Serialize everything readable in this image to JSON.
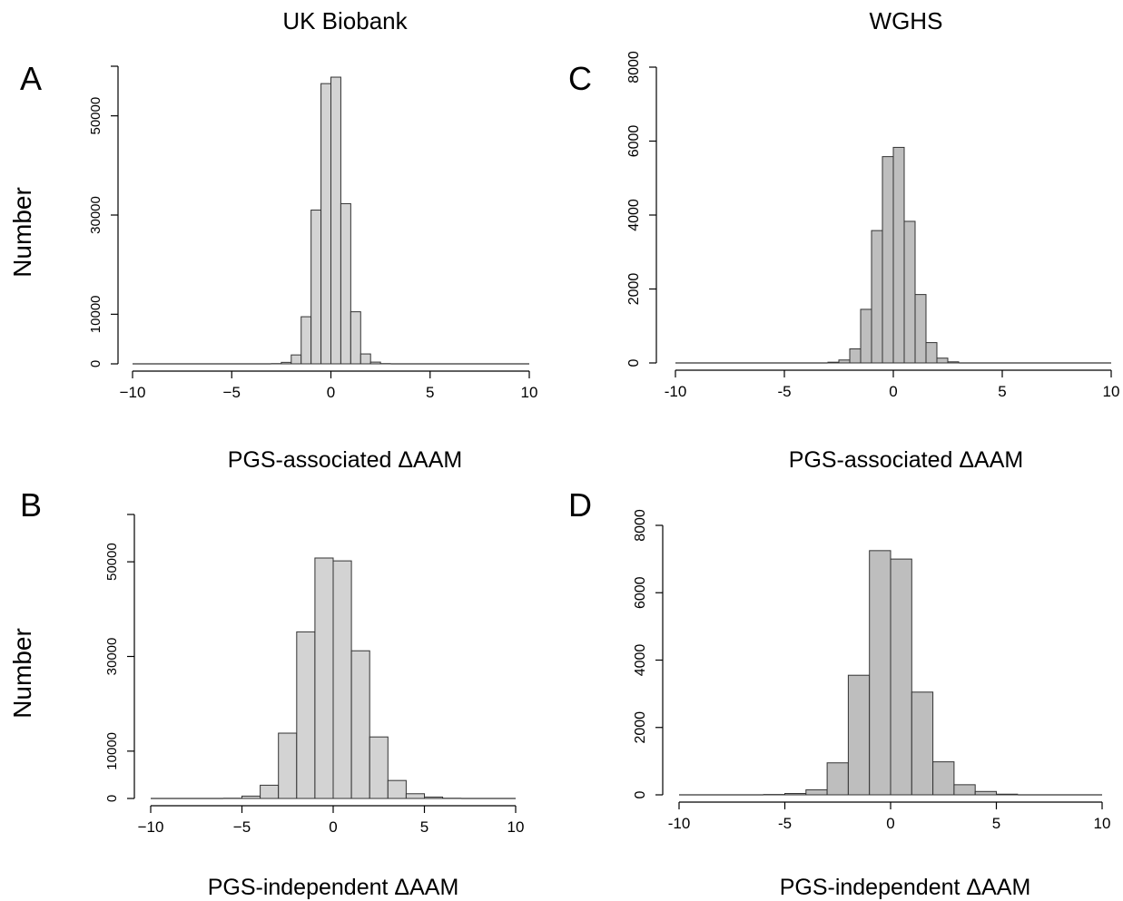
{
  "columns": {
    "left_title": "UK Biobank",
    "right_title": "WGHS"
  },
  "row_labels": {
    "top_ylabel": "Number",
    "bottom_ylabel": "Number"
  },
  "chart_data": [
    {
      "panel": "A",
      "type": "bar",
      "title": "",
      "xlabel": "PGS-associated ΔAAM",
      "ylabel": "Number",
      "bar_color": "#d3d3d3",
      "xlim": [
        -10,
        10
      ],
      "ylim": [
        0,
        60000
      ],
      "xticks": [
        "−10",
        "−5",
        "0",
        "5",
        "10"
      ],
      "xtick_values": [
        -10,
        -5,
        0,
        5,
        10
      ],
      "yticks": [
        "0",
        "10000",
        "30000",
        "50000"
      ],
      "ytick_values": [
        0,
        10000,
        30000,
        50000
      ],
      "bin_width": 0.5,
      "bins": [
        {
          "x0": -3.0,
          "x1": -2.5,
          "value": 50
        },
        {
          "x0": -2.5,
          "x1": -2.0,
          "value": 300
        },
        {
          "x0": -2.0,
          "x1": -1.5,
          "value": 1800
        },
        {
          "x0": -1.5,
          "x1": -1.0,
          "value": 9500
        },
        {
          "x0": -1.0,
          "x1": -0.5,
          "value": 31000
        },
        {
          "x0": -0.5,
          "x1": 0.0,
          "value": 56500
        },
        {
          "x0": 0.0,
          "x1": 0.5,
          "value": 57800
        },
        {
          "x0": 0.5,
          "x1": 1.0,
          "value": 32300
        },
        {
          "x0": 1.0,
          "x1": 1.5,
          "value": 10500
        },
        {
          "x0": 1.5,
          "x1": 2.0,
          "value": 2000
        },
        {
          "x0": 2.0,
          "x1": 2.5,
          "value": 350
        },
        {
          "x0": 2.5,
          "x1": 3.0,
          "value": 50
        }
      ]
    },
    {
      "panel": "B",
      "type": "bar",
      "title": "",
      "xlabel": "PGS-independent ΔAAM",
      "ylabel": "Number",
      "bar_color": "#d3d3d3",
      "xlim": [
        -10,
        10
      ],
      "ylim": [
        0,
        60000
      ],
      "xticks": [
        "−10",
        "−5",
        "0",
        "5",
        "10"
      ],
      "xtick_values": [
        -10,
        -5,
        0,
        5,
        10
      ],
      "yticks": [
        "0",
        "10000",
        "30000",
        "50000"
      ],
      "ytick_values": [
        0,
        10000,
        30000,
        50000
      ],
      "bin_width": 1,
      "bins": [
        {
          "x0": -6,
          "x1": -5,
          "value": 50
        },
        {
          "x0": -5,
          "x1": -4,
          "value": 500
        },
        {
          "x0": -4,
          "x1": -3,
          "value": 2800
        },
        {
          "x0": -3,
          "x1": -2,
          "value": 13800
        },
        {
          "x0": -2,
          "x1": -1,
          "value": 35200
        },
        {
          "x0": -1,
          "x1": 0,
          "value": 50800
        },
        {
          "x0": 0,
          "x1": 1,
          "value": 50200
        },
        {
          "x0": 1,
          "x1": 2,
          "value": 31200
        },
        {
          "x0": 2,
          "x1": 3,
          "value": 13000
        },
        {
          "x0": 3,
          "x1": 4,
          "value": 3800
        },
        {
          "x0": 4,
          "x1": 5,
          "value": 1000
        },
        {
          "x0": 5,
          "x1": 6,
          "value": 300
        },
        {
          "x0": 6,
          "x1": 7,
          "value": 50
        }
      ]
    },
    {
      "panel": "C",
      "type": "bar",
      "title": "",
      "xlabel": "PGS-associated ΔAAM",
      "ylabel": "",
      "bar_color": "#bebebe",
      "xlim": [
        -10,
        10
      ],
      "ylim": [
        0,
        8000
      ],
      "xticks": [
        "-10",
        "-5",
        "0",
        "5",
        "10"
      ],
      "xtick_values": [
        -10,
        -5,
        0,
        5,
        10
      ],
      "yticks": [
        "0",
        "2000",
        "4000",
        "6000",
        "8000"
      ],
      "ytick_values": [
        0,
        2000,
        4000,
        6000,
        8000
      ],
      "bin_width": 0.5,
      "bins": [
        {
          "x0": -3.0,
          "x1": -2.5,
          "value": 20
        },
        {
          "x0": -2.5,
          "x1": -2.0,
          "value": 80
        },
        {
          "x0": -2.0,
          "x1": -1.5,
          "value": 380
        },
        {
          "x0": -1.5,
          "x1": -1.0,
          "value": 1450
        },
        {
          "x0": -1.0,
          "x1": -0.5,
          "value": 3580
        },
        {
          "x0": -0.5,
          "x1": 0.0,
          "value": 5580
        },
        {
          "x0": 0.0,
          "x1": 0.5,
          "value": 5830
        },
        {
          "x0": 0.5,
          "x1": 1.0,
          "value": 3830
        },
        {
          "x0": 1.0,
          "x1": 1.5,
          "value": 1850
        },
        {
          "x0": 1.5,
          "x1": 2.0,
          "value": 550
        },
        {
          "x0": 2.0,
          "x1": 2.5,
          "value": 130
        },
        {
          "x0": 2.5,
          "x1": 3.0,
          "value": 30
        }
      ]
    },
    {
      "panel": "D",
      "type": "bar",
      "title": "",
      "xlabel": "PGS-independent ΔAAM",
      "ylabel": "",
      "bar_color": "#bebebe",
      "xlim": [
        -10,
        10
      ],
      "ylim": [
        0,
        8000
      ],
      "xticks": [
        "-10",
        "-5",
        "0",
        "5",
        "10"
      ],
      "xtick_values": [
        -10,
        -5,
        0,
        5,
        10
      ],
      "yticks": [
        "0",
        "2000",
        "4000",
        "6000",
        "8000"
      ],
      "ytick_values": [
        0,
        2000,
        4000,
        6000,
        8000
      ],
      "bin_width": 1,
      "bins": [
        {
          "x0": -6,
          "x1": -5,
          "value": 10
        },
        {
          "x0": -5,
          "x1": -4,
          "value": 40
        },
        {
          "x0": -4,
          "x1": -3,
          "value": 150
        },
        {
          "x0": -3,
          "x1": -2,
          "value": 950
        },
        {
          "x0": -2,
          "x1": -1,
          "value": 3550
        },
        {
          "x0": -1,
          "x1": 0,
          "value": 7250
        },
        {
          "x0": 0,
          "x1": 1,
          "value": 7000
        },
        {
          "x0": 1,
          "x1": 2,
          "value": 3050
        },
        {
          "x0": 2,
          "x1": 3,
          "value": 980
        },
        {
          "x0": 3,
          "x1": 4,
          "value": 300
        },
        {
          "x0": 4,
          "x1": 5,
          "value": 100
        },
        {
          "x0": 5,
          "x1": 6,
          "value": 20
        }
      ]
    }
  ]
}
